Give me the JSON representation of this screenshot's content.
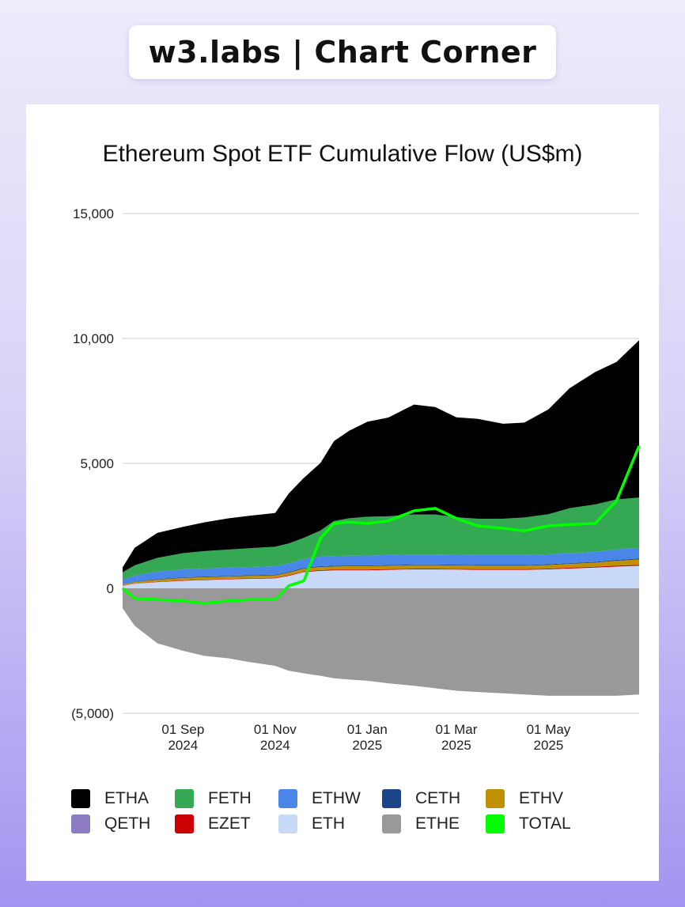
{
  "brand": {
    "text": "w3.labs | Chart Corner"
  },
  "chart_data": {
    "type": "area",
    "title": "Ethereum Spot ETF Cumulative Flow (US$m)",
    "xlabel": "",
    "ylabel": "",
    "ylim": [
      -5000,
      15000
    ],
    "yticks": [
      15000,
      10000,
      5000,
      0,
      -5000
    ],
    "ytick_labels": [
      "15,000",
      "10,000",
      "5,000",
      "0",
      "(5,000)"
    ],
    "x_dates": [
      "2024-07-23",
      "2024-07-31",
      "2024-08-15",
      "2024-09-01",
      "2024-09-15",
      "2024-10-01",
      "2024-10-15",
      "2024-11-01",
      "2024-11-10",
      "2024-11-20",
      "2024-12-01",
      "2024-12-10",
      "2024-12-20",
      "2025-01-01",
      "2025-01-15",
      "2025-02-01",
      "2025-02-15",
      "2025-03-01",
      "2025-03-15",
      "2025-04-01",
      "2025-04-15",
      "2025-05-01",
      "2025-05-15",
      "2025-06-01",
      "2025-06-15",
      "2025-06-30"
    ],
    "xtick_dates": [
      "2024-09-01",
      "2024-11-01",
      "2025-01-01",
      "2025-03-01",
      "2025-05-01"
    ],
    "xtick_labels": [
      [
        "01 Sep",
        "2024"
      ],
      [
        "01 Nov",
        "2024"
      ],
      [
        "01 Jan",
        "2025"
      ],
      [
        "01 Mar",
        "2025"
      ],
      [
        "01 May",
        "2025"
      ]
    ],
    "series": [
      {
        "name": "ETH",
        "color": "#c9daf8",
        "values": [
          100,
          180,
          250,
          300,
          330,
          360,
          380,
          400,
          500,
          650,
          700,
          720,
          720,
          720,
          740,
          760,
          760,
          750,
          740,
          740,
          740,
          760,
          790,
          830,
          870,
          900
        ]
      },
      {
        "name": "EZET",
        "color": "#cc0000",
        "values": [
          5,
          10,
          15,
          20,
          20,
          20,
          25,
          25,
          25,
          25,
          30,
          30,
          30,
          30,
          30,
          30,
          30,
          30,
          30,
          30,
          30,
          30,
          35,
          35,
          40,
          40
        ]
      },
      {
        "name": "QETH",
        "color": "#8e7cc3",
        "values": [
          5,
          5,
          5,
          5,
          5,
          5,
          5,
          5,
          5,
          5,
          5,
          5,
          5,
          5,
          5,
          5,
          5,
          5,
          5,
          5,
          5,
          5,
          5,
          5,
          5,
          5
        ]
      },
      {
        "name": "ETHV",
        "color": "#bf9000",
        "values": [
          40,
          60,
          80,
          90,
          90,
          90,
          90,
          90,
          100,
          110,
          120,
          120,
          130,
          130,
          130,
          130,
          130,
          130,
          130,
          130,
          130,
          140,
          150,
          160,
          190,
          210
        ]
      },
      {
        "name": "CETH",
        "color": "#1c4587",
        "values": [
          10,
          15,
          20,
          25,
          25,
          25,
          25,
          25,
          25,
          30,
          30,
          30,
          30,
          30,
          30,
          30,
          30,
          30,
          30,
          30,
          30,
          30,
          30,
          30,
          35,
          35
        ]
      },
      {
        "name": "ETHW",
        "color": "#4a86e8",
        "values": [
          180,
          250,
          300,
          320,
          320,
          330,
          330,
          340,
          340,
          350,
          380,
          390,
          390,
          400,
          400,
          400,
          400,
          400,
          400,
          400,
          400,
          400,
          400,
          400,
          420,
          440
        ]
      },
      {
        "name": "FETH",
        "color": "#34a853",
        "values": [
          300,
          400,
          550,
          650,
          700,
          720,
          750,
          780,
          800,
          850,
          1050,
          1400,
          1500,
          1550,
          1550,
          1600,
          1600,
          1500,
          1450,
          1450,
          1500,
          1600,
          1800,
          1900,
          2000,
          2000
        ]
      },
      {
        "name": "ETHA",
        "color": "#000000",
        "values": [
          200,
          700,
          1000,
          1050,
          1150,
          1250,
          1300,
          1350,
          2000,
          2400,
          2700,
          3200,
          3500,
          3800,
          3950,
          4400,
          4300,
          4000,
          4000,
          3800,
          3800,
          4200,
          4800,
          5300,
          5500,
          6300
        ]
      },
      {
        "name": "ETHE",
        "color": "#999999",
        "values": [
          -800,
          -1500,
          -2200,
          -2500,
          -2700,
          -2800,
          -2950,
          -3100,
          -3300,
          -3400,
          -3500,
          -3600,
          -3650,
          -3700,
          -3800,
          -3900,
          -4000,
          -4100,
          -4150,
          -4200,
          -4250,
          -4300,
          -4300,
          -4300,
          -4300,
          -4250
        ]
      },
      {
        "name": "TOTAL",
        "color": "#00ff00",
        "type": "line",
        "values": [
          0,
          -400,
          -450,
          -500,
          -600,
          -500,
          -450,
          -450,
          100,
          300,
          2000,
          2600,
          2650,
          2600,
          2700,
          3100,
          3200,
          2800,
          2500,
          2400,
          2300,
          2500,
          2550,
          2600,
          3500,
          5700
        ]
      }
    ],
    "stack_order": [
      "ETH",
      "EZET",
      "QETH",
      "ETHV",
      "CETH",
      "ETHW",
      "FETH",
      "ETHA"
    ],
    "legend": {
      "position": "bottom",
      "rows": [
        [
          {
            "name": "ETHA",
            "color": "#000000"
          },
          {
            "name": "FETH",
            "color": "#34a853"
          },
          {
            "name": "ETHW",
            "color": "#4a86e8"
          },
          {
            "name": "CETH",
            "color": "#1c4587"
          },
          {
            "name": "ETHV",
            "color": "#bf9000"
          }
        ],
        [
          {
            "name": "QETH",
            "color": "#8e7cc3"
          },
          {
            "name": "EZET",
            "color": "#cc0000"
          },
          {
            "name": "ETH",
            "color": "#c9daf8"
          },
          {
            "name": "ETHE",
            "color": "#999999"
          },
          {
            "name": "TOTAL",
            "color": "#00ff00"
          }
        ]
      ]
    },
    "grid": true
  }
}
